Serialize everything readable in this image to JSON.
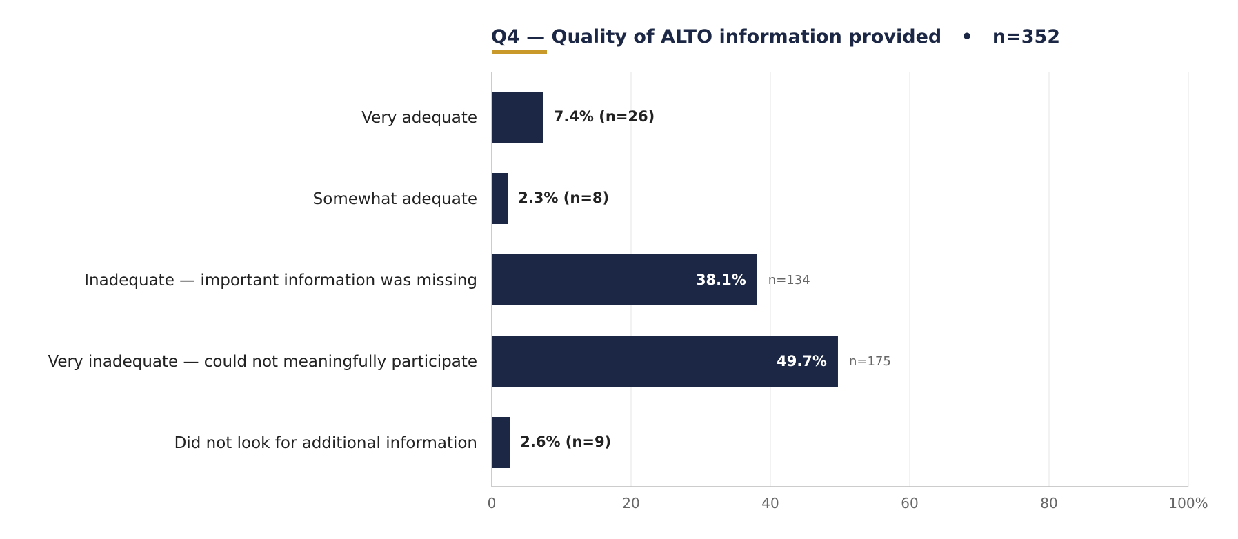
{
  "chart_data": {
    "type": "bar",
    "orientation": "horizontal",
    "title": "Q4 — Quality of ALTO information provided   •   n=352",
    "categories": [
      "Very adequate",
      "Somewhat adequate",
      "Inadequate — important information was missing",
      "Very inadequate — could not meaningfully participate",
      "Did not look for additional information"
    ],
    "values": [
      7.4,
      2.3,
      38.1,
      49.7,
      2.6
    ],
    "value_labels": [
      "7.4%",
      "2.3%",
      "38.1%",
      "49.7%",
      "2.6%"
    ],
    "counts": [
      "n=26",
      "n=8",
      "n=134",
      "n=175",
      "n=9"
    ],
    "xlim": [
      0,
      100
    ],
    "xticks": [
      0,
      20,
      40,
      60,
      80,
      100
    ],
    "xtick_labels": [
      "0",
      "20",
      "40",
      "60",
      "80",
      "100%"
    ],
    "grid": "vertical",
    "legend": "none",
    "colors": {
      "bar": "#1b2744",
      "title": "#1b2744",
      "accent": "#c9992a",
      "label": "#222222",
      "muted": "#666666",
      "grid": "#e6e6e6",
      "axis": "#bbbbbb",
      "inside_label": "#ffffff"
    }
  }
}
